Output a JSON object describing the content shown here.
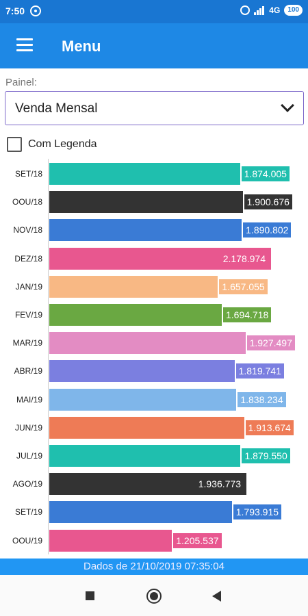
{
  "status_bar": {
    "time": "7:50",
    "network": "4G",
    "battery": "100",
    "icons": [
      "whatsapp-icon",
      "alarm-icon",
      "signal-icon",
      "battery-icon"
    ]
  },
  "app_bar": {
    "title": "Menu",
    "menu_icon": "hamburger-menu-icon",
    "color": "#1e88e5"
  },
  "form": {
    "painel_label": "Painel:",
    "selected_panel": "Venda Mensal",
    "checkbox_label": "Com Legenda",
    "checkbox_checked": false
  },
  "chart_data": {
    "type": "bar",
    "orientation": "horizontal",
    "categories": [
      "SET/18",
      "OOU/18",
      "NOV/18",
      "DEZ/18",
      "JAN/19",
      "FEV/19",
      "MAR/19",
      "ABR/19",
      "MAI/19",
      "JUN/19",
      "JUL/19",
      "AGO/19",
      "SET/19",
      "OOU/19"
    ],
    "values": [
      1874005,
      1900676,
      1890802,
      2178974,
      1657055,
      1694718,
      1927497,
      1819741,
      1838234,
      1913674,
      1879550,
      1936773,
      1793915,
      1205537
    ],
    "value_labels": [
      "1.874.005",
      "1.900.676",
      "1.890.802",
      "2.178.974",
      "1.657.055",
      "1.694.718",
      "1.927.497",
      "1.819.741",
      "1.838.234",
      "1.913.674",
      "1.879.550",
      "1.936.773",
      "1.793.915",
      "1.205.537"
    ],
    "colors": [
      "#1fbfae",
      "#333333",
      "#3a7bd5",
      "#e8578f",
      "#f8b884",
      "#6aa842",
      "#e38cc3",
      "#7b7fe0",
      "#7fb6ea",
      "#ee7b56",
      "#1fbfae",
      "#333333",
      "#3a7bd5",
      "#e8578f"
    ],
    "label_inside": [
      false,
      false,
      false,
      true,
      false,
      false,
      false,
      false,
      false,
      false,
      false,
      true,
      false,
      false
    ],
    "xlim": [
      0,
      2178974
    ],
    "grid": false
  },
  "footer": {
    "text": "Dados de 21/10/2019 07:35:04"
  },
  "nav_bar": {
    "icons": [
      "recent-apps-icon",
      "home-icon",
      "back-icon"
    ]
  }
}
